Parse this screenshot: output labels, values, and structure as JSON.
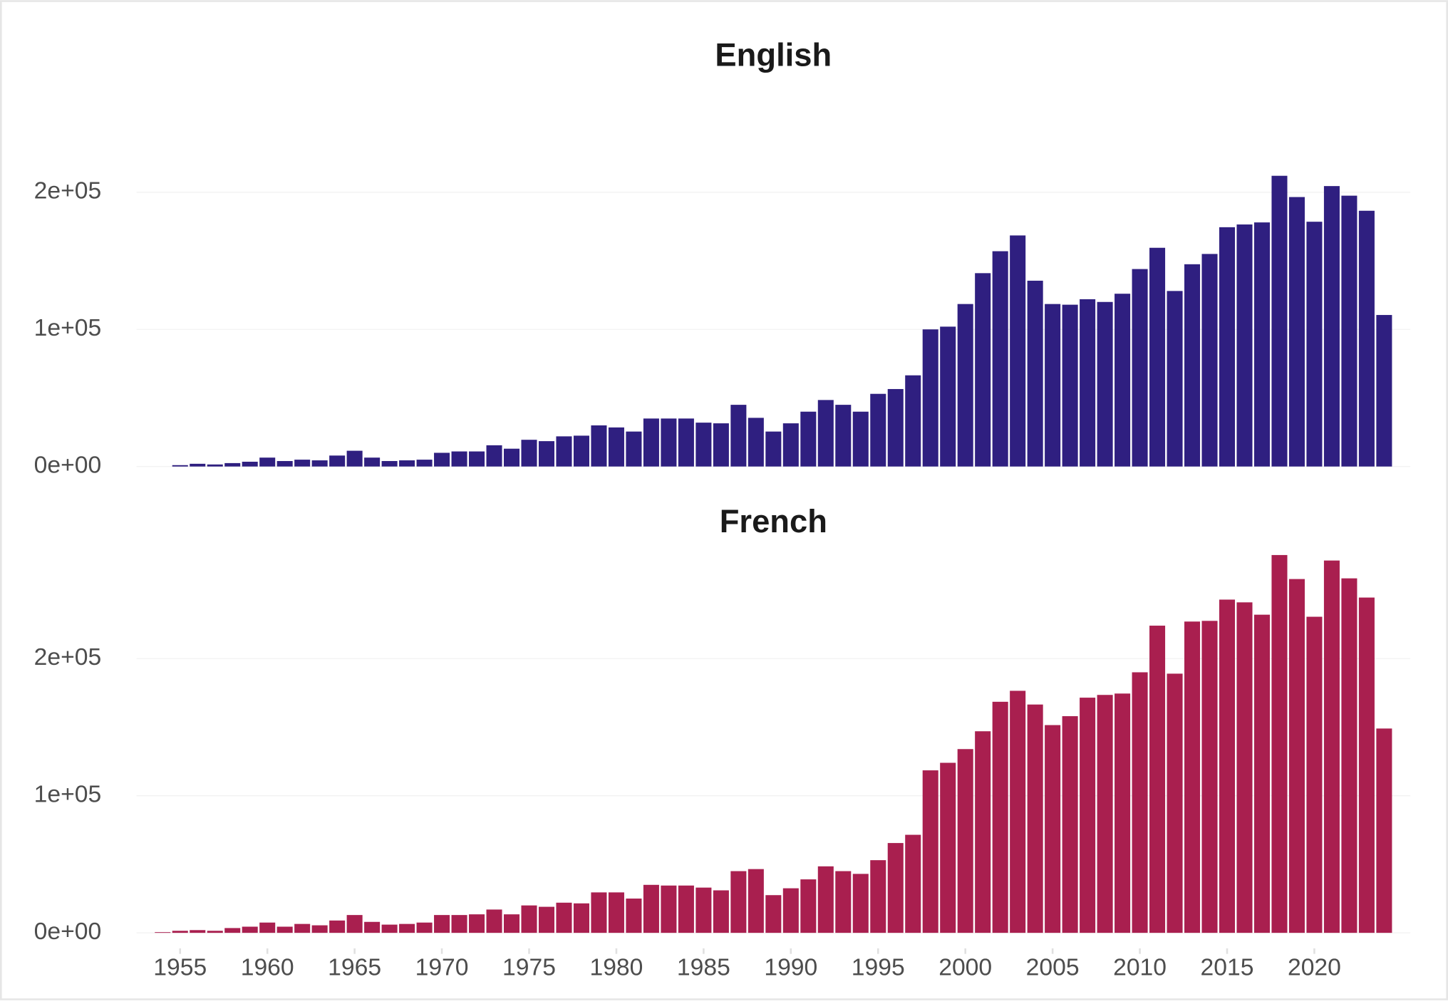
{
  "chart_data": [
    {
      "type": "bar",
      "title": "English",
      "color": "#2f1f80",
      "x": [
        1954,
        1955,
        1956,
        1957,
        1958,
        1959,
        1960,
        1961,
        1962,
        1963,
        1964,
        1965,
        1966,
        1967,
        1968,
        1969,
        1970,
        1971,
        1972,
        1973,
        1974,
        1975,
        1976,
        1977,
        1978,
        1979,
        1980,
        1981,
        1982,
        1983,
        1984,
        1985,
        1986,
        1987,
        1988,
        1989,
        1990,
        1991,
        1992,
        1993,
        1994,
        1995,
        1996,
        1997,
        1998,
        1999,
        2000,
        2001,
        2002,
        2003,
        2004,
        2005,
        2006,
        2007,
        2008,
        2009,
        2010,
        2011,
        2012,
        2013,
        2014,
        2015,
        2016,
        2017,
        2018,
        2019,
        2020,
        2021,
        2022,
        2023,
        2024
      ],
      "values": [
        0,
        1000,
        2000,
        1500,
        2500,
        3500,
        6500,
        4000,
        5000,
        4500,
        8000,
        11500,
        6500,
        4000,
        4500,
        5000,
        10000,
        11000,
        11000,
        15500,
        13000,
        19500,
        18500,
        22000,
        22500,
        30000,
        28500,
        25500,
        35000,
        35000,
        35000,
        32000,
        31500,
        45000,
        35500,
        25500,
        31500,
        40000,
        48500,
        45000,
        40000,
        53000,
        56500,
        66500,
        100000,
        102000,
        118500,
        141000,
        157000,
        168500,
        135500,
        118500,
        118000,
        122000,
        120000,
        126000,
        144000,
        159500,
        128000,
        147500,
        155000,
        174500,
        176500,
        178000,
        212000,
        196500,
        178500,
        204500,
        197500,
        186500,
        110500
      ],
      "xlim": [
        1952.5,
        2025.5
      ],
      "ylim": [
        -14000,
        288000
      ],
      "yticks": [
        {
          "value": 0,
          "label": "0e+00"
        },
        {
          "value": 100000,
          "label": "1e+05"
        },
        {
          "value": 200000,
          "label": "2e+05"
        }
      ],
      "grid": true
    },
    {
      "type": "bar",
      "title": "French",
      "color": "#a91f4f",
      "x": [
        1954,
        1955,
        1956,
        1957,
        1958,
        1959,
        1960,
        1961,
        1962,
        1963,
        1964,
        1965,
        1966,
        1967,
        1968,
        1969,
        1970,
        1971,
        1972,
        1973,
        1974,
        1975,
        1976,
        1977,
        1978,
        1979,
        1980,
        1981,
        1982,
        1983,
        1984,
        1985,
        1986,
        1987,
        1988,
        1989,
        1990,
        1991,
        1992,
        1993,
        1994,
        1995,
        1996,
        1997,
        1998,
        1999,
        2000,
        2001,
        2002,
        2003,
        2004,
        2005,
        2006,
        2007,
        2008,
        2009,
        2010,
        2011,
        2012,
        2013,
        2014,
        2015,
        2016,
        2017,
        2018,
        2019,
        2020,
        2021,
        2022,
        2023,
        2024
      ],
      "values": [
        500,
        1500,
        2000,
        1500,
        3500,
        4500,
        7500,
        4500,
        6500,
        5500,
        9000,
        13000,
        8000,
        6000,
        6500,
        7500,
        13000,
        13000,
        13500,
        17000,
        13500,
        20000,
        19000,
        22000,
        21500,
        29500,
        29500,
        25000,
        35000,
        34500,
        34500,
        33000,
        31000,
        45000,
        46500,
        27500,
        32500,
        39000,
        48500,
        45000,
        43000,
        53000,
        65500,
        71500,
        118500,
        124000,
        134000,
        147000,
        168500,
        176500,
        166500,
        151500,
        158000,
        171500,
        173500,
        174500,
        190000,
        224000,
        189000,
        227000,
        227500,
        243000,
        241000,
        232000,
        275500,
        258000,
        230500,
        271500,
        258500,
        244500,
        149000
      ],
      "xlim": [
        1952.5,
        2025.5
      ],
      "ylim": [
        -14000,
        288000
      ],
      "yticks": [
        {
          "value": 0,
          "label": "0e+00"
        },
        {
          "value": 100000,
          "label": "1e+05"
        },
        {
          "value": 200000,
          "label": "2e+05"
        }
      ],
      "xticks": [
        1955,
        1960,
        1965,
        1970,
        1975,
        1980,
        1985,
        1990,
        1995,
        2000,
        2005,
        2010,
        2015,
        2020
      ],
      "grid": true
    }
  ]
}
